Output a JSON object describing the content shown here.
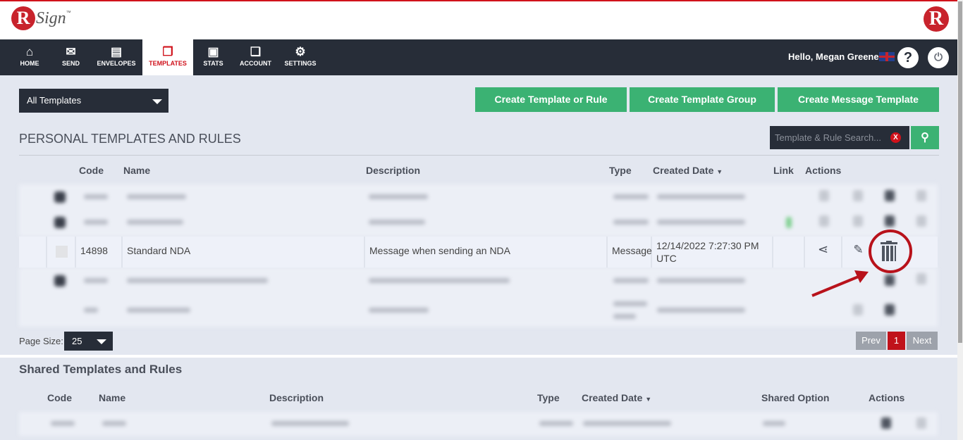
{
  "brand": {
    "logo_letter": "R",
    "logo_text": "Sign",
    "tm": "™",
    "accent": "#d0121b",
    "green": "#3bb273",
    "dark": "#272d38"
  },
  "nav": {
    "items": [
      {
        "label": "HOME",
        "icon": "home-icon",
        "glyph": "⌂"
      },
      {
        "label": "SEND",
        "icon": "envelope-icon",
        "glyph": "✉"
      },
      {
        "label": "ENVELOPES",
        "icon": "archive-icon",
        "glyph": "▤"
      },
      {
        "label": "TEMPLATES",
        "icon": "templates-icon",
        "glyph": "❐",
        "active": true
      },
      {
        "label": "STATS",
        "icon": "briefcase-icon",
        "glyph": "▣"
      },
      {
        "label": "ACCOUNT",
        "icon": "documents-icon",
        "glyph": "❏"
      },
      {
        "label": "SETTINGS",
        "icon": "gear-icon",
        "glyph": "⚙"
      }
    ],
    "greeting": "Hello, Megan Greene",
    "help": "?",
    "power": "⏻"
  },
  "toolbar": {
    "filter": "All Templates",
    "buttons": [
      "Create Template or Rule",
      "Create Template Group",
      "Create Message Template"
    ]
  },
  "personal": {
    "title": "PERSONAL TEMPLATES AND RULES",
    "search_placeholder": "Template & Rule Search...",
    "clear": "X",
    "columns": [
      "Code",
      "Name",
      "Description",
      "Type",
      "Created Date",
      "Link",
      "Actions"
    ],
    "highlighted_row": {
      "code": "14898",
      "name": "Standard NDA",
      "description": "Message when sending an NDA",
      "type": "Message",
      "created": "12/14/2022 7:27:30 PM UTC"
    },
    "page_size_label": "Page Size:",
    "page_size": "25",
    "pagination": {
      "prev": "Prev",
      "current": "1",
      "next": "Next"
    }
  },
  "shared": {
    "title": "Shared Templates and Rules",
    "columns": [
      "Code",
      "Name",
      "Description",
      "Type",
      "Created Date",
      "Shared Option",
      "Actions"
    ]
  }
}
